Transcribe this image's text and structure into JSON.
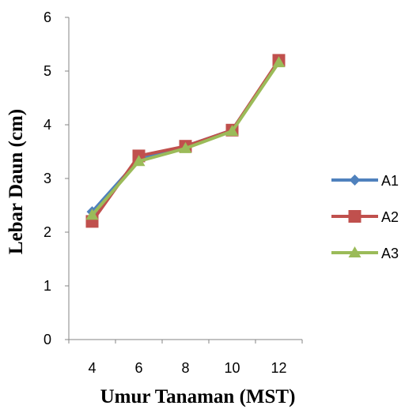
{
  "chart_data": {
    "type": "line",
    "title": "",
    "xlabel": "Umur Tanaman (MST)",
    "ylabel": "Lebar Daun (cm)",
    "categories": [
      "4",
      "6",
      "8",
      "10",
      "12"
    ],
    "ylim": [
      0,
      6
    ],
    "yticks": [
      "0",
      "1",
      "2",
      "3",
      "4",
      "5",
      "6"
    ],
    "grid": false,
    "legend_position": "right",
    "series": [
      {
        "name": "A1",
        "color": "#4F81BD",
        "marker": "diamond",
        "values": [
          2.38,
          3.35,
          3.6,
          3.9,
          5.18
        ]
      },
      {
        "name": "A2",
        "color": "#C0504D",
        "marker": "square",
        "values": [
          2.2,
          3.42,
          3.6,
          3.9,
          5.2
        ]
      },
      {
        "name": "A3",
        "color": "#9BBB59",
        "marker": "triangle",
        "values": [
          2.32,
          3.32,
          3.56,
          3.88,
          5.16
        ]
      }
    ]
  }
}
